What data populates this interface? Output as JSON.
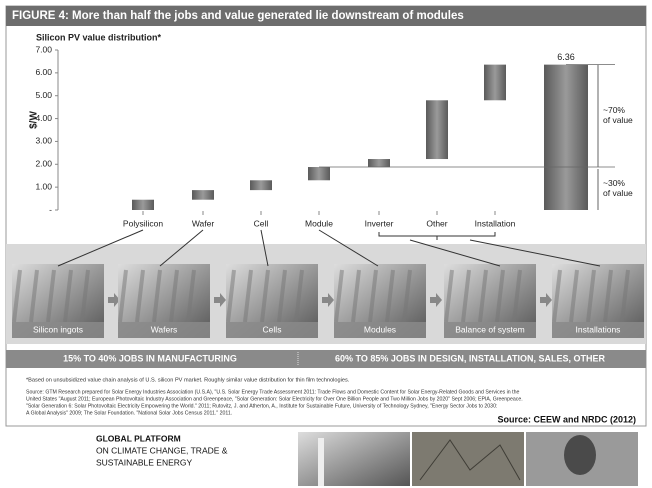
{
  "header": {
    "title": "FIGURE 4: More than half the jobs and value generated lie downstream of modules"
  },
  "chart_data": {
    "type": "waterfall",
    "title": "Silicon PV value distribution*",
    "y_label": "$/W",
    "categories": [
      "Polysilicon",
      "Wafer",
      "Cell",
      "Module",
      "Inverter",
      "Other",
      "Installation"
    ],
    "values": [
      0.45,
      0.42,
      0.43,
      0.58,
      0.35,
      2.57,
      1.56
    ],
    "total": 6.36,
    "color": "#6f6f6f",
    "ylim": [
      0,
      7
    ],
    "yticks": [
      {
        "value": 0,
        "label": "-"
      },
      {
        "value": 1,
        "label": "1.00"
      },
      {
        "value": 2,
        "label": "2.00"
      },
      {
        "value": 3,
        "label": "3.00"
      },
      {
        "value": 4,
        "label": "4.00"
      },
      {
        "value": 5,
        "label": "5.00"
      },
      {
        "value": 6,
        "label": "6.00"
      },
      {
        "value": 7,
        "label": "7.00"
      }
    ],
    "annotations": [
      [
        "~70%",
        "of value"
      ],
      [
        "~30%",
        "of value"
      ]
    ]
  },
  "stages": [
    "Silicon ingots",
    "Wafers",
    "Cells",
    "Modules",
    "Balance of system",
    "Installations"
  ],
  "jobs": [
    "15% TO 40%  JOBS IN MANUFACTURING",
    "60% TO 85% JOBS IN DESIGN, INSTALLATION, SALES, OTHER"
  ],
  "footnote": "*Based on unsubsidized value chain analysis of U.S. silicon PV market. Roughly similar value distribution for thin film technologies.",
  "sources": [
    "Source: GTM Research prepared for Solar Energy Industries Association (U.S.A), \"U.S. Solar Energy Trade Assessment 2011: Trade Flows and Domestic Content for Solar Energy-Related Goods and Services in the",
    "United States \"August 2011; European Photovoltaic Industry Association and Greenpeace, \"Solar Generation: Solar Electricity for Over One Billion People and Two Million Jobs by 2020\" Sept 2006; EPIA, Greenpeace.",
    "\"Solar Generation 6: Solar Photovoltaic Electricity Empowering the World.\" 2011; Rutovitz, J. and Atherton, A., Institute for Sustainable Future, University of Technology Sydney, \"Energy Sector Jobs to 2030:",
    "A Global Analysis\" 2009; The Solar Foundation. \"National Solar Jobs Census 2011.\" 2011."
  ],
  "credit": "Source: CEEW and NRDC (2012)",
  "footer": [
    "GLOBAL PLATFORM",
    "ON CLIMATE CHANGE, TRADE &",
    "SUSTAINABLE ENERGY"
  ]
}
